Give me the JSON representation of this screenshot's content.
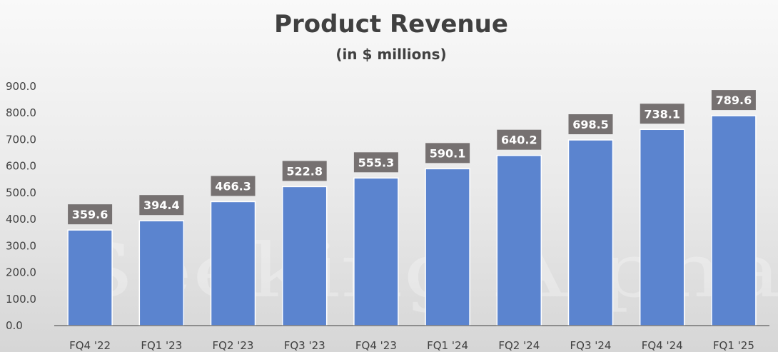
{
  "watermark": "Seeking Alpha",
  "chart_data": {
    "type": "bar",
    "title": "Product Revenue",
    "subtitle": "(in $ millions)",
    "categories": [
      "FQ4 '22",
      "FQ1 '23",
      "FQ2 '23",
      "FQ3 '23",
      "FQ4 '23",
      "FQ1 '24",
      "FQ2 '24",
      "FQ3 '24",
      "FQ4 '24",
      "FQ1 '25"
    ],
    "values": [
      359.6,
      394.4,
      466.3,
      522.8,
      555.3,
      590.1,
      640.2,
      698.5,
      738.1,
      789.6
    ],
    "data_labels": [
      "359.6",
      "394.4",
      "466.3",
      "522.8",
      "555.3",
      "590.1",
      "640.2",
      "698.5",
      "738.1",
      "789.6"
    ],
    "yticks": [
      "0.0",
      "100.0",
      "200.0",
      "300.0",
      "400.0",
      "500.0",
      "600.0",
      "700.0",
      "800.0",
      "900.0"
    ],
    "ylim": [
      0,
      900
    ],
    "grid": false,
    "legend": "none",
    "colors": {
      "bar": "#5b84cf",
      "bar_edge": "#ffffff",
      "label_bg": "#767171",
      "axis": "#404040"
    }
  }
}
